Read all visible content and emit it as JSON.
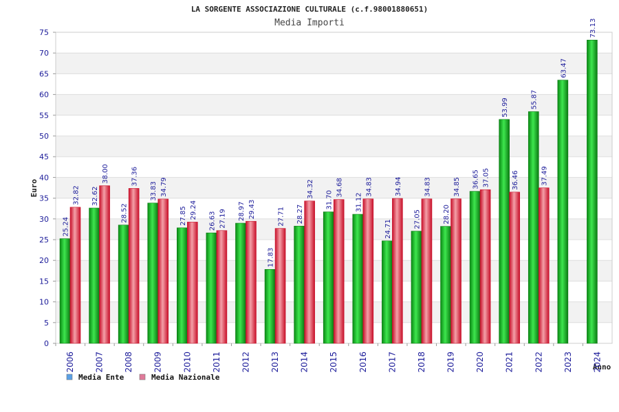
{
  "chart_data": {
    "type": "bar",
    "title": "LA SORGENTE ASSOCIAZIONE CULTURALE (c.f.98001880651)",
    "subtitle": "Media Importi",
    "ylabel": "Euro",
    "xlabel": "Anno",
    "ylim": [
      0,
      75
    ],
    "yticks": [
      0,
      5,
      10,
      15,
      20,
      25,
      30,
      35,
      40,
      45,
      50,
      55,
      60,
      65,
      70,
      75
    ],
    "categories": [
      "2006",
      "2007",
      "2008",
      "2009",
      "2010",
      "2011",
      "2012",
      "2013",
      "2014",
      "2015",
      "2016",
      "2017",
      "2018",
      "2019",
      "2020",
      "2021",
      "2022",
      "2023",
      "2024"
    ],
    "series": [
      {
        "name": "Media Ente",
        "color": "#22cc33",
        "legend_color": "#5aa0e6",
        "values": [
          25.24,
          32.62,
          28.52,
          33.83,
          27.85,
          26.63,
          28.97,
          17.83,
          28.27,
          31.7,
          31.12,
          24.71,
          27.05,
          28.2,
          36.65,
          53.99,
          55.87,
          63.47,
          73.13
        ],
        "labels": [
          "25.24",
          "32.62",
          "28.52",
          "33.83",
          "27.85",
          "26.63",
          "28.97",
          "17.83",
          "28.27",
          "31.70",
          "31.12",
          "24.71",
          "27.05",
          "28.20",
          "36.65",
          "53.99",
          "55.87",
          "63.47",
          "73.13"
        ]
      },
      {
        "name": "Media Nazionale",
        "color": "#ee3344",
        "legend_color": "#e07a9a",
        "values": [
          32.82,
          38.0,
          37.36,
          34.79,
          29.24,
          27.19,
          29.43,
          27.71,
          34.32,
          34.68,
          34.83,
          34.94,
          34.83,
          34.85,
          37.05,
          36.46,
          37.49,
          null,
          null
        ],
        "labels": [
          "32.82",
          "38.00",
          "37.36",
          "34.79",
          "29.24",
          "27.19",
          "29.43",
          "27.71",
          "34.32",
          "34.68",
          "34.83",
          "34.94",
          "34.83",
          "34.85",
          "37.05",
          "36.46",
          "37.49",
          null,
          null
        ]
      }
    ],
    "grid": true,
    "legend_position": "bottom-left"
  }
}
